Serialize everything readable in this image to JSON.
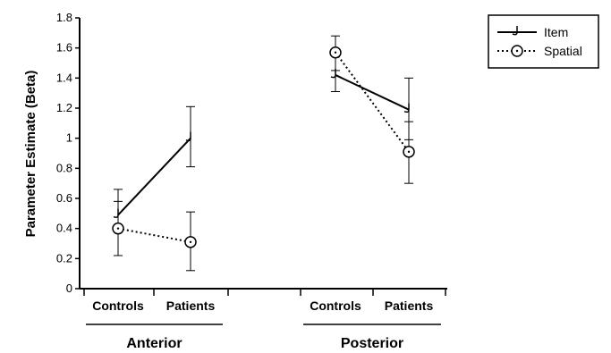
{
  "chart_data": {
    "type": "line",
    "ylabel": "Parameter Estimate (Beta)",
    "ylim": [
      0,
      1.8
    ],
    "yticks": [
      "0",
      "0.2",
      "0.4",
      "0.6",
      "0.8",
      "1",
      "1.2",
      "1.4",
      "1.6",
      "1.8"
    ],
    "grid": false,
    "legend_position": "top-right",
    "groups": [
      {
        "label": "Anterior",
        "categories": [
          "Controls",
          "Patients"
        ]
      },
      {
        "label": "Posterior",
        "categories": [
          "Controls",
          "Patients"
        ]
      }
    ],
    "series": [
      {
        "name": "Item",
        "line_style": "solid",
        "marker": "hook",
        "color": "#000000",
        "values": [
          [
            0.49,
            1.0
          ],
          [
            1.42,
            1.19
          ]
        ],
        "error_upper": [
          [
            0.58,
            1.21
          ],
          [
            1.57,
            1.4
          ]
        ],
        "error_lower": [
          [
            0.4,
            0.81
          ],
          [
            1.31,
            0.99
          ]
        ]
      },
      {
        "name": "Spatial",
        "line_style": "dotted",
        "marker": "circle-dot",
        "color": "#000000",
        "values": [
          [
            0.4,
            0.31
          ],
          [
            1.57,
            0.91
          ]
        ],
        "error_upper": [
          [
            0.66,
            0.51
          ],
          [
            1.68,
            1.11
          ]
        ],
        "error_lower": [
          [
            0.22,
            0.12
          ],
          [
            1.45,
            0.7
          ]
        ]
      }
    ]
  }
}
